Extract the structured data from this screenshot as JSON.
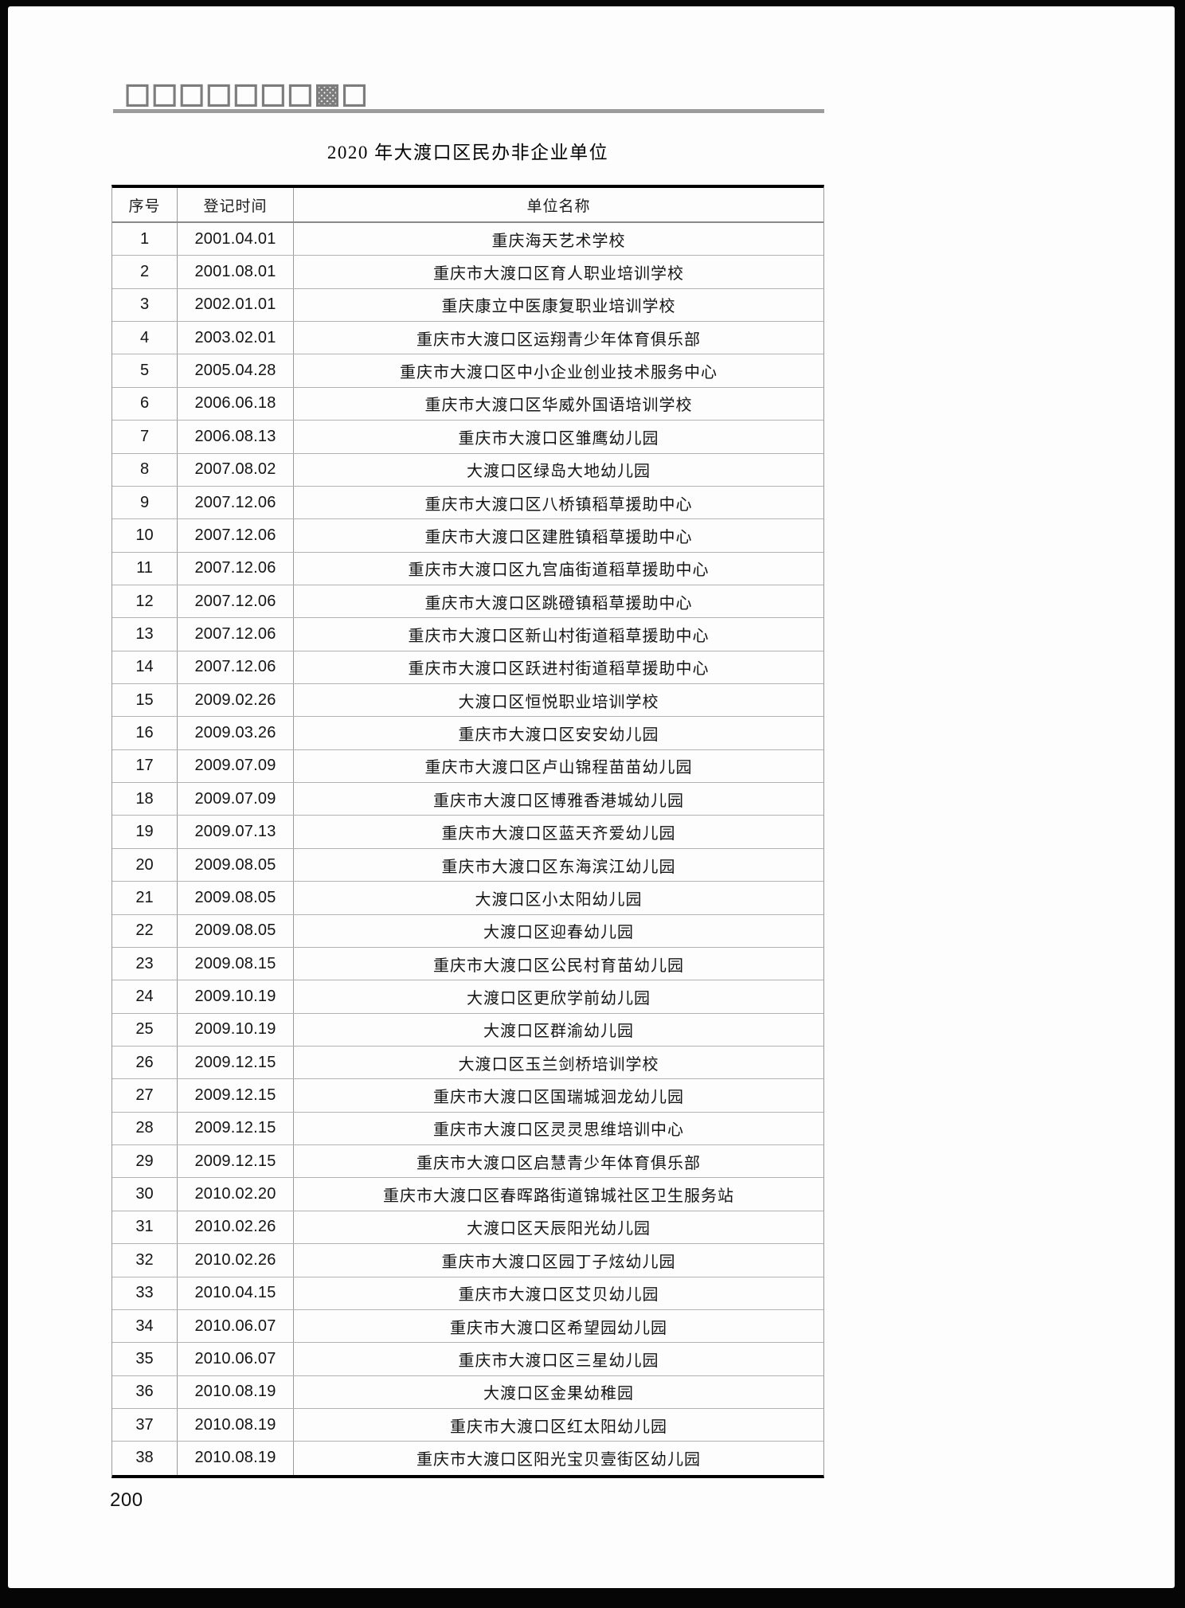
{
  "page": {
    "masthead_text": "□□□□□□□▩□",
    "title": "2020 年大渡口区民办非企业单位",
    "page_number": "200"
  },
  "table": {
    "columns": [
      "序号",
      "登记时间",
      "单位名称"
    ],
    "rows": [
      {
        "no": "1",
        "date": "2001.04.01",
        "name": "重庆海天艺术学校"
      },
      {
        "no": "2",
        "date": "2001.08.01",
        "name": "重庆市大渡口区育人职业培训学校"
      },
      {
        "no": "3",
        "date": "2002.01.01",
        "name": "重庆康立中医康复职业培训学校"
      },
      {
        "no": "4",
        "date": "2003.02.01",
        "name": "重庆市大渡口区运翔青少年体育俱乐部"
      },
      {
        "no": "5",
        "date": "2005.04.28",
        "name": "重庆市大渡口区中小企业创业技术服务中心"
      },
      {
        "no": "6",
        "date": "2006.06.18",
        "name": "重庆市大渡口区华威外国语培训学校"
      },
      {
        "no": "7",
        "date": "2006.08.13",
        "name": "重庆市大渡口区雏鹰幼儿园"
      },
      {
        "no": "8",
        "date": "2007.08.02",
        "name": "大渡口区绿岛大地幼儿园"
      },
      {
        "no": "9",
        "date": "2007.12.06",
        "name": "重庆市大渡口区八桥镇稻草援助中心"
      },
      {
        "no": "10",
        "date": "2007.12.06",
        "name": "重庆市大渡口区建胜镇稻草援助中心"
      },
      {
        "no": "11",
        "date": "2007.12.06",
        "name": "重庆市大渡口区九宫庙街道稻草援助中心"
      },
      {
        "no": "12",
        "date": "2007.12.06",
        "name": "重庆市大渡口区跳磴镇稻草援助中心"
      },
      {
        "no": "13",
        "date": "2007.12.06",
        "name": "重庆市大渡口区新山村街道稻草援助中心"
      },
      {
        "no": "14",
        "date": "2007.12.06",
        "name": "重庆市大渡口区跃进村街道稻草援助中心"
      },
      {
        "no": "15",
        "date": "2009.02.26",
        "name": "大渡口区恒悦职业培训学校"
      },
      {
        "no": "16",
        "date": "2009.03.26",
        "name": "重庆市大渡口区安安幼儿园"
      },
      {
        "no": "17",
        "date": "2009.07.09",
        "name": "重庆市大渡口区卢山锦程苗苗幼儿园"
      },
      {
        "no": "18",
        "date": "2009.07.09",
        "name": "重庆市大渡口区博雅香港城幼儿园"
      },
      {
        "no": "19",
        "date": "2009.07.13",
        "name": "重庆市大渡口区蓝天齐爱幼儿园"
      },
      {
        "no": "20",
        "date": "2009.08.05",
        "name": "重庆市大渡口区东海滨江幼儿园"
      },
      {
        "no": "21",
        "date": "2009.08.05",
        "name": "大渡口区小太阳幼儿园"
      },
      {
        "no": "22",
        "date": "2009.08.05",
        "name": "大渡口区迎春幼儿园"
      },
      {
        "no": "23",
        "date": "2009.08.15",
        "name": "重庆市大渡口区公民村育苗幼儿园"
      },
      {
        "no": "24",
        "date": "2009.10.19",
        "name": "大渡口区更欣学前幼儿园"
      },
      {
        "no": "25",
        "date": "2009.10.19",
        "name": "大渡口区群渝幼儿园"
      },
      {
        "no": "26",
        "date": "2009.12.15",
        "name": "大渡口区玉兰剑桥培训学校"
      },
      {
        "no": "27",
        "date": "2009.12.15",
        "name": "重庆市大渡口区国瑞城洄龙幼儿园"
      },
      {
        "no": "28",
        "date": "2009.12.15",
        "name": "重庆市大渡口区灵灵思维培训中心"
      },
      {
        "no": "29",
        "date": "2009.12.15",
        "name": "重庆市大渡口区启慧青少年体育俱乐部"
      },
      {
        "no": "30",
        "date": "2010.02.20",
        "name": "重庆市大渡口区春晖路街道锦城社区卫生服务站"
      },
      {
        "no": "31",
        "date": "2010.02.26",
        "name": "大渡口区天辰阳光幼儿园"
      },
      {
        "no": "32",
        "date": "2010.02.26",
        "name": "重庆市大渡口区园丁子炫幼儿园"
      },
      {
        "no": "33",
        "date": "2010.04.15",
        "name": "重庆市大渡口区艾贝幼儿园"
      },
      {
        "no": "34",
        "date": "2010.06.07",
        "name": "重庆市大渡口区希望园幼儿园"
      },
      {
        "no": "35",
        "date": "2010.06.07",
        "name": "重庆市大渡口区三星幼儿园"
      },
      {
        "no": "36",
        "date": "2010.08.19",
        "name": "大渡口区金果幼稚园"
      },
      {
        "no": "37",
        "date": "2010.08.19",
        "name": "重庆市大渡口区红太阳幼儿园"
      },
      {
        "no": "38",
        "date": "2010.08.19",
        "name": "重庆市大渡口区阳光宝贝壹街区幼儿园"
      }
    ]
  }
}
